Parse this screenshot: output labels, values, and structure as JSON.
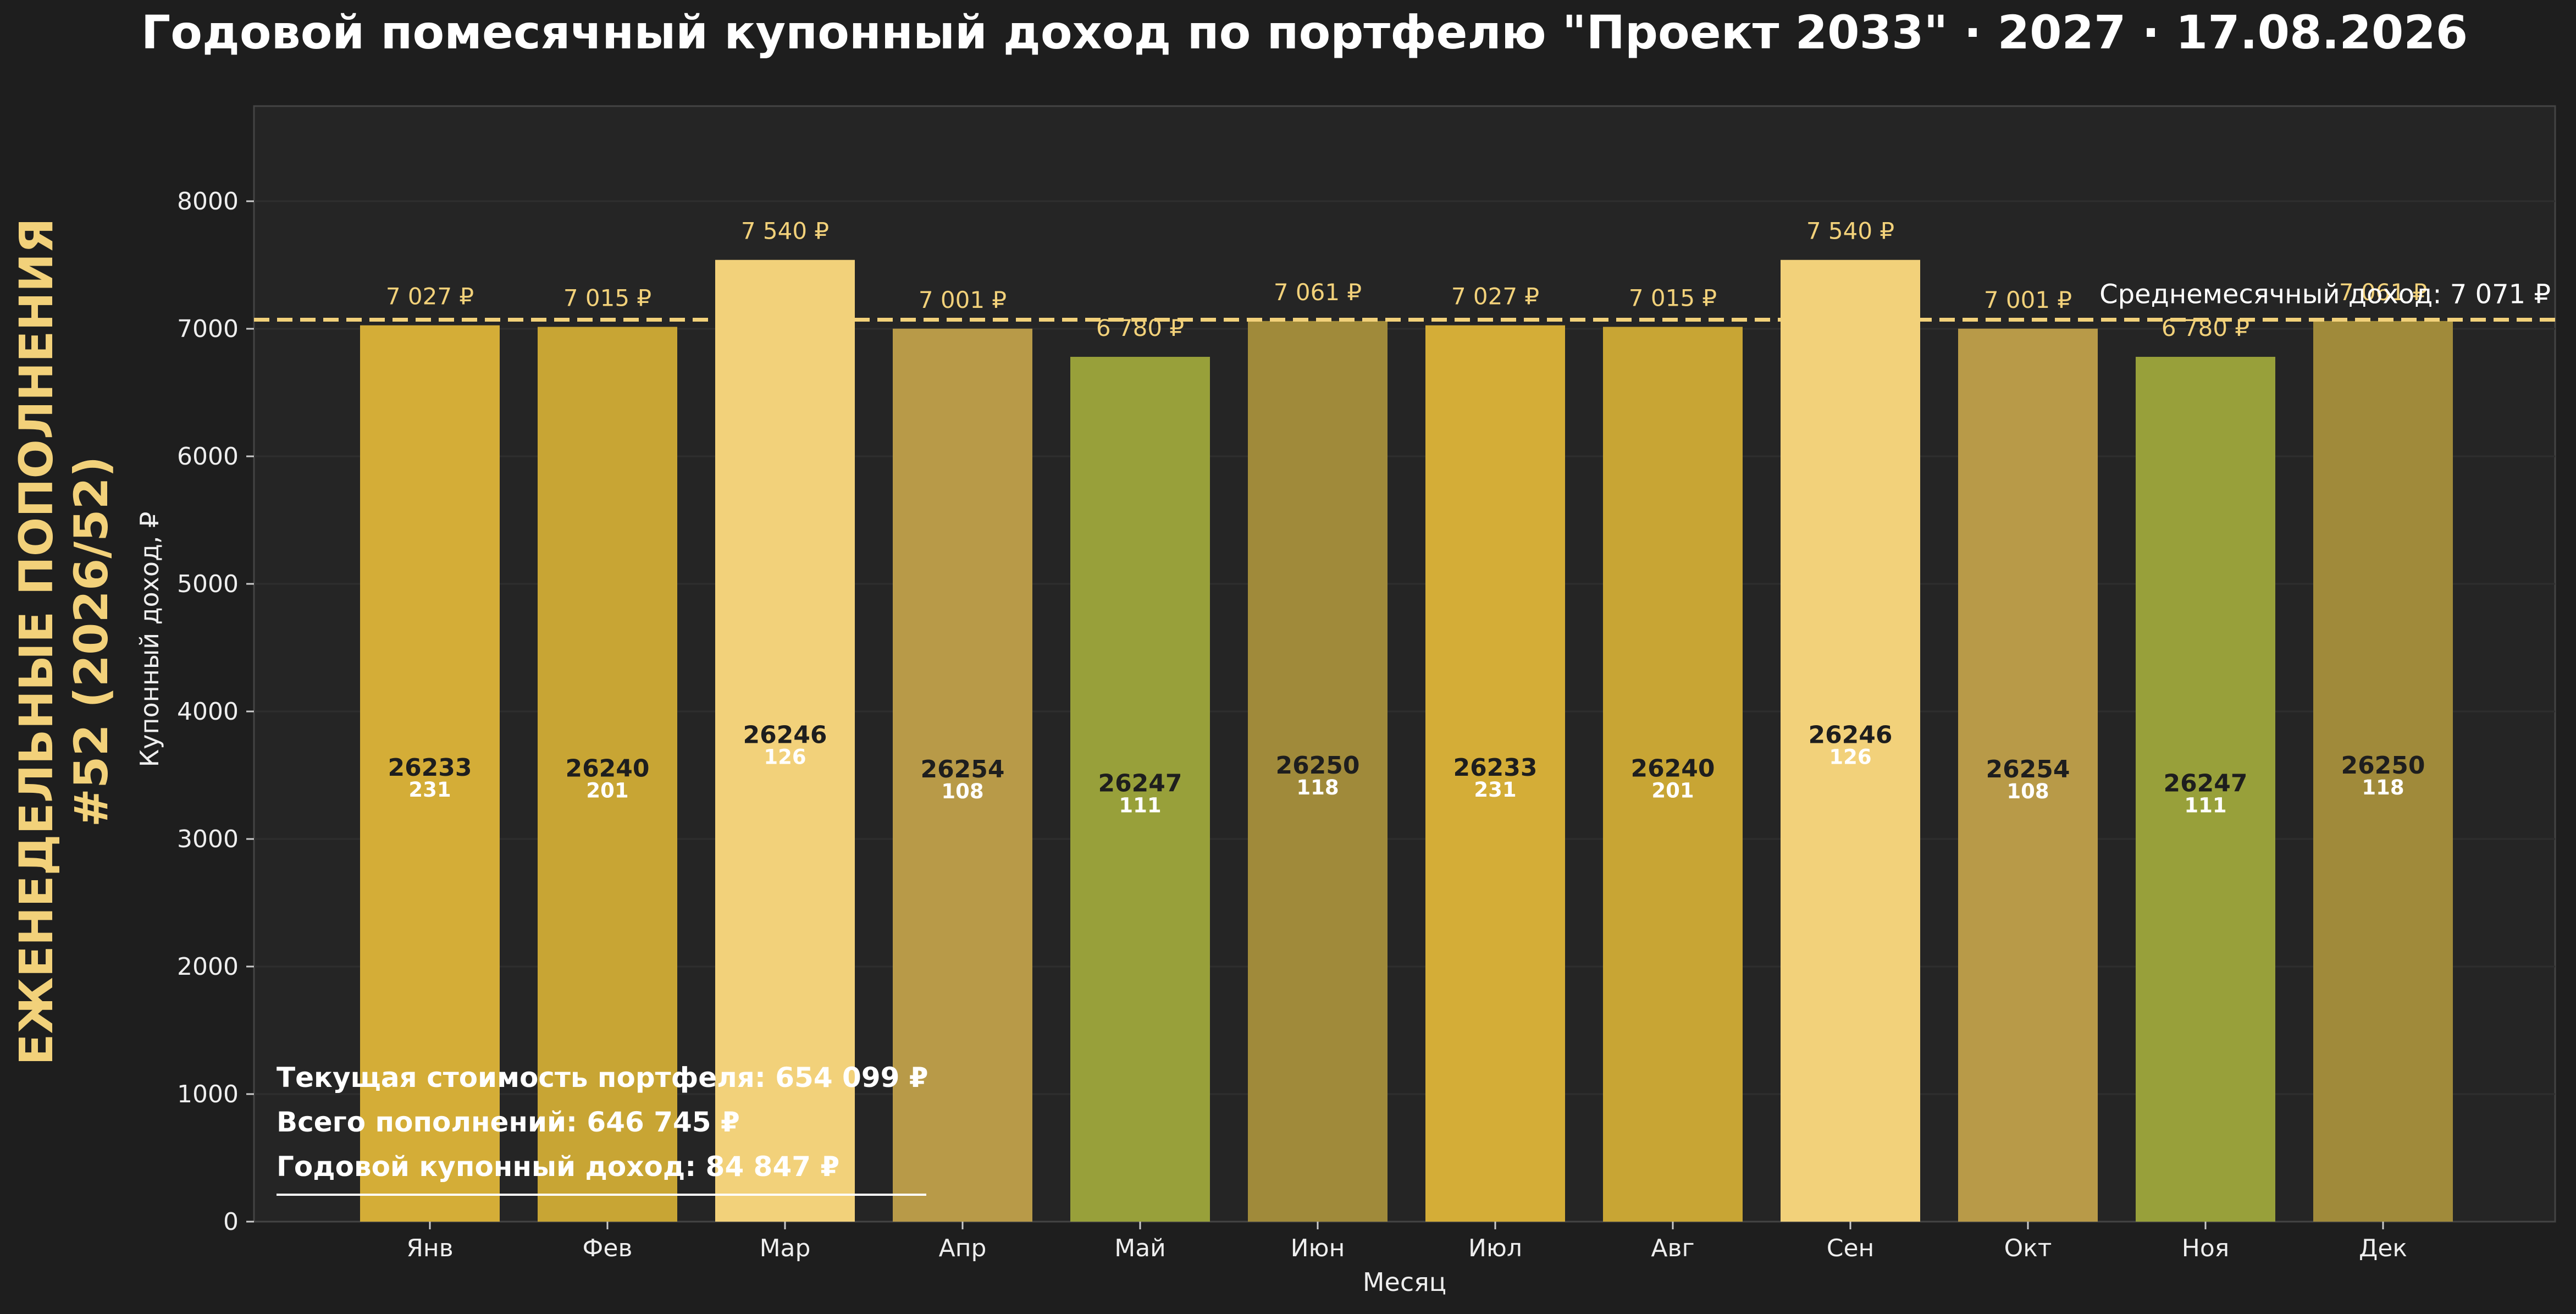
{
  "chart_data": {
    "type": "bar",
    "title": "Годовой помесячный купонный доход по портфелю \"Проект 2033\" · 2027 · 17.08.2026",
    "side_title_line1": "ЕЖЕНЕДЕЛЬНЫЕ ПОПОЛНЕНИЯ",
    "side_title_line2": "#52 (2026/52)",
    "xlabel": "Месяц",
    "ylabel": "Купонный доход, ₽",
    "ylim": [
      0,
      8800
    ],
    "yticks": [
      0,
      1000,
      2000,
      3000,
      4000,
      5000,
      6000,
      7000,
      8000
    ],
    "grid": true,
    "categories": [
      "Янв",
      "Фев",
      "Мар",
      "Апр",
      "Май",
      "Июн",
      "Июл",
      "Авг",
      "Сен",
      "Окт",
      "Ноя",
      "Дек"
    ],
    "values": [
      7027,
      7015,
      7540,
      7001,
      6780,
      7061,
      7027,
      7015,
      7540,
      7001,
      6780,
      7061
    ],
    "value_labels": [
      "7 027 ₽",
      "7 015 ₽",
      "7 540 ₽",
      "7 001 ₽",
      "6 780 ₽",
      "7 061 ₽",
      "7 027 ₽",
      "7 015 ₽",
      "7 540 ₽",
      "7 001 ₽",
      "6 780 ₽",
      "7 061 ₽"
    ],
    "bond_codes": [
      "26233",
      "26240",
      "26246",
      "26254",
      "26247",
      "26250",
      "26233",
      "26240",
      "26246",
      "26254",
      "26247",
      "26250"
    ],
    "bond_counts": [
      "231",
      "201",
      "126",
      "108",
      "111",
      "118",
      "231",
      "201",
      "126",
      "108",
      "111",
      "118"
    ],
    "bar_colors": [
      "#d4ad37",
      "#c8a534",
      "#f2d17a",
      "#b89a48",
      "#98a03a",
      "#a08a3a",
      "#d4ad37",
      "#c8a534",
      "#f2d17a",
      "#b89a48",
      "#98a03a",
      "#a08a3a"
    ],
    "average": {
      "value": 7071,
      "label": "Среднемесячный доход: 7 071 ₽"
    },
    "summary": [
      "Текущая стоимость портфеля: 654 099 ₽",
      "Всего пополнений: 646 745 ₽",
      "Годовой купонный доход: 84 847 ₽"
    ],
    "colors": {
      "background": "#1e1e1e",
      "plot_background": "#252525",
      "accent": "#f2d17a",
      "text": "#eeeeee",
      "grid": "#2e2e2e"
    }
  }
}
